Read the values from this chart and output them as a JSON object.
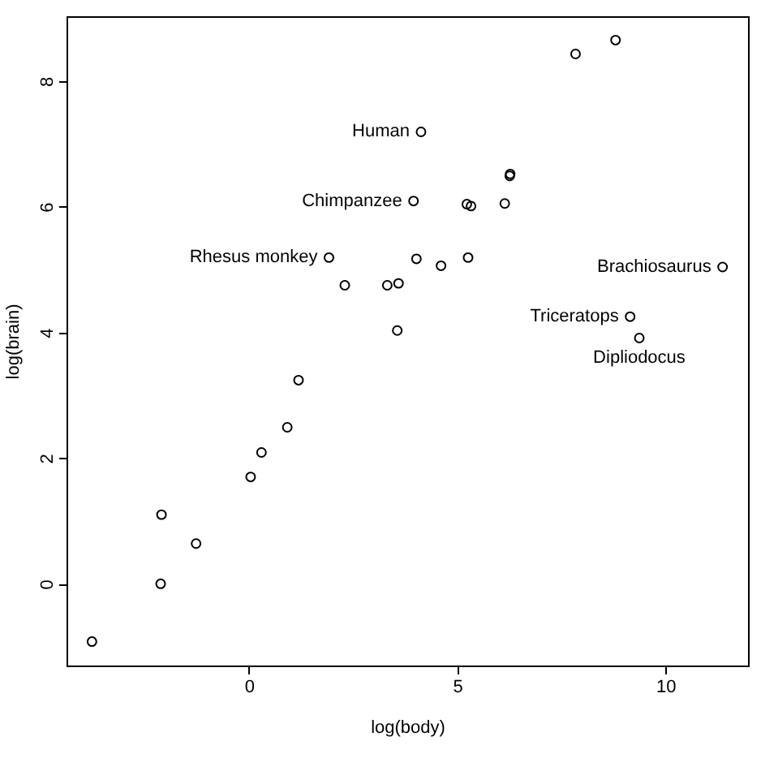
{
  "chart_data": {
    "type": "scatter",
    "xlabel": "log(body)",
    "ylabel": "log(brain)",
    "x": [
      0.3,
      6.14,
      3.59,
      3.32,
      0.04,
      9.37,
      7.84,
      5.23,
      6.26,
      2.3,
      1.19,
      6.27,
      5.33,
      4.13,
      8.8,
      9.15,
      1.92,
      3.56,
      -2.12,
      -3.77,
      0.92,
      4.02,
      4.61,
      3.95,
      -1.27,
      11.37,
      -2.1,
      5.26
    ],
    "series": [
      {
        "color": "#000000",
        "values": [
          2.09,
          6.05,
          4.78,
          4.75,
          1.7,
          3.91,
          8.43,
          6.04,
          6.49,
          4.75,
          3.24,
          6.52,
          6.01,
          7.19,
          8.65,
          4.25,
          5.19,
          4.03,
          0,
          -0.92,
          2.49,
          5.17,
          5.06,
          6.09,
          0.64,
          5.04,
          1.1,
          5.19
        ]
      }
    ],
    "xlim": [
      -4.38,
      11.98
    ],
    "ylim": [
      -1.3,
      9.03
    ],
    "xticks": [
      0,
      5,
      10
    ],
    "yticks": [
      0,
      2,
      4,
      6,
      8
    ],
    "marker": "circle",
    "grid": false,
    "annotations": [
      {
        "text": "Human",
        "x": 4.13,
        "y": 7.19
      },
      {
        "text": "Chimpanzee",
        "x": 3.95,
        "y": 6.09
      },
      {
        "text": "Rhesus monkey",
        "x": 1.92,
        "y": 5.19
      },
      {
        "text": "Brachiosaurus",
        "x": 11.37,
        "y": 5.04
      },
      {
        "text": "Triceratops",
        "x": 9.15,
        "y": 4.25
      },
      {
        "text": "Dipliodocus",
        "x": 9.37,
        "y": 3.91
      }
    ]
  }
}
